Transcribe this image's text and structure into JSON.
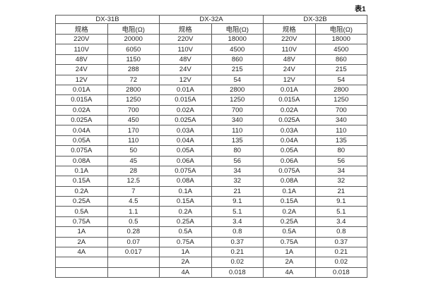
{
  "page": {
    "table_label": "表1"
  },
  "table": {
    "groups": [
      {
        "name": "DX-31B",
        "spec_header": "规格",
        "resistance_header": "电阻(Ω)",
        "rows": [
          [
            "220V",
            "20000"
          ],
          [
            "110V",
            "6050"
          ],
          [
            "48V",
            "1150"
          ],
          [
            "24V",
            "288"
          ],
          [
            "12V",
            "72"
          ],
          [
            "0.01A",
            "2800"
          ],
          [
            "0.015A",
            "1250"
          ],
          [
            "0.02A",
            "700"
          ],
          [
            "0.025A",
            "450"
          ],
          [
            "0.04A",
            "170"
          ],
          [
            "0.05A",
            "110"
          ],
          [
            "0.075A",
            "50"
          ],
          [
            "0.08A",
            "45"
          ],
          [
            "0.1A",
            "28"
          ],
          [
            "0.15A",
            "12.5"
          ],
          [
            "0.2A",
            "7"
          ],
          [
            "0.25A",
            "4.5"
          ],
          [
            "0.5A",
            "1.1"
          ],
          [
            "0.75A",
            "0.5"
          ],
          [
            "1A",
            "0.28"
          ],
          [
            "2A",
            "0.07"
          ],
          [
            "4A",
            "0.017"
          ]
        ]
      },
      {
        "name": "DX-32A",
        "spec_header": "规格",
        "resistance_header": "电阻(Ω)",
        "rows": [
          [
            "220V",
            "18000"
          ],
          [
            "110V",
            "4500"
          ],
          [
            "48V",
            "860"
          ],
          [
            "24V",
            "215"
          ],
          [
            "12V",
            "54"
          ],
          [
            "0.01A",
            "2800"
          ],
          [
            "0.015A",
            "1250"
          ],
          [
            "0.02A",
            "700"
          ],
          [
            "0.025A",
            "340"
          ],
          [
            "0.03A",
            "110"
          ],
          [
            "0.04A",
            "135"
          ],
          [
            "0.05A",
            "80"
          ],
          [
            "0.06A",
            "56"
          ],
          [
            "0.075A",
            "34"
          ],
          [
            "0.08A",
            "32"
          ],
          [
            "0.1A",
            "21"
          ],
          [
            "0.15A",
            "9.1"
          ],
          [
            "0.2A",
            "5.1"
          ],
          [
            "0.25A",
            "3.4"
          ],
          [
            "0.5A",
            "0.8"
          ],
          [
            "0.75A",
            "0.37"
          ],
          [
            "1A",
            "0.21"
          ],
          [
            "2A",
            "0.02"
          ],
          [
            "4A",
            "0.018"
          ]
        ]
      },
      {
        "name": "DX-32B",
        "spec_header": "规格",
        "resistance_header": "电阻(Ω)",
        "rows": [
          [
            "220V",
            "18000"
          ],
          [
            "110V",
            "4500"
          ],
          [
            "48V",
            "860"
          ],
          [
            "24V",
            "215"
          ],
          [
            "12V",
            "54"
          ],
          [
            "0.01A",
            "2800"
          ],
          [
            "0.015A",
            "1250"
          ],
          [
            "0.02A",
            "700"
          ],
          [
            "0.025A",
            "340"
          ],
          [
            "0.03A",
            "110"
          ],
          [
            "0.04A",
            "135"
          ],
          [
            "0.05A",
            "80"
          ],
          [
            "0.06A",
            "56"
          ],
          [
            "0.075A",
            "34"
          ],
          [
            "0.08A",
            "32"
          ],
          [
            "0.1A",
            "21"
          ],
          [
            "0.15A",
            "9.1"
          ],
          [
            "0.2A",
            "5.1"
          ],
          [
            "0.25A",
            "3.4"
          ],
          [
            "0.5A",
            "0.8"
          ],
          [
            "0.75A",
            "0.37"
          ],
          [
            "1A",
            "0.21"
          ],
          [
            "2A",
            "0.02"
          ],
          [
            "4A",
            "0.018"
          ]
        ]
      }
    ]
  }
}
